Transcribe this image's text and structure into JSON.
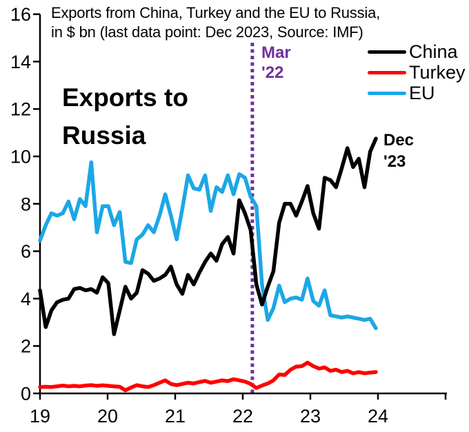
{
  "title": {
    "line1": "Exports from China, Turkey and the EU to Russia,",
    "line2": "in $ bn (last data point: Dec 2023, Source: IMF)"
  },
  "annotations": {
    "big_label_line1": "Exports to",
    "big_label_line2": "Russia",
    "event_label_line1": "Mar",
    "event_label_line2": "'22",
    "last_point_label_line1": "Dec",
    "last_point_label_line2": "'23"
  },
  "colors": {
    "china": "#000000",
    "turkey": "#FF0000",
    "eu": "#1BA7E6",
    "event_line": "#7030A0",
    "axis": "#000000"
  },
  "chart_data": {
    "type": "line",
    "title": "Exports from China, Turkey and the EU to Russia, in $ bn (last data point: Dec 2023, Source: IMF)",
    "xlabel": "",
    "ylabel": "$ bn",
    "ylim": [
      0,
      16
    ],
    "y_ticks": [
      0,
      2,
      4,
      6,
      8,
      10,
      12,
      14,
      16
    ],
    "x_tick_labels": [
      "19",
      "20",
      "21",
      "22",
      "23",
      "24"
    ],
    "frequency": "monthly",
    "x_start": "2019-01",
    "x_end": "2023-12",
    "grid": false,
    "legend_position": "top-right",
    "event_line": {
      "label": "Mar '22",
      "month_index": 37.3,
      "style": "dotted"
    },
    "legend": [
      {
        "name": "China",
        "color": "#000000"
      },
      {
        "name": "Turkey",
        "color": "#FF0000"
      },
      {
        "name": "EU",
        "color": "#1BA7E6"
      }
    ],
    "series": [
      {
        "name": "China",
        "color": "#000000",
        "values": [
          4.35,
          2.8,
          3.5,
          3.85,
          3.95,
          4.0,
          4.4,
          4.45,
          4.35,
          4.4,
          4.25,
          4.9,
          4.65,
          2.5,
          3.5,
          4.5,
          4.0,
          4.25,
          5.2,
          5.05,
          4.75,
          4.85,
          5.0,
          5.35,
          4.6,
          4.2,
          5.0,
          4.6,
          5.1,
          5.55,
          5.9,
          5.6,
          6.3,
          6.6,
          5.9,
          8.15,
          7.6,
          6.9,
          4.6,
          3.75,
          4.5,
          5.15,
          7.2,
          8.0,
          8.0,
          7.5,
          8.1,
          8.75,
          7.6,
          6.95,
          9.1,
          9.0,
          8.7,
          9.5,
          10.35,
          9.55,
          9.9,
          8.7,
          10.2,
          10.75
        ]
      },
      {
        "name": "Turkey",
        "color": "#FF0000",
        "values": [
          0.27,
          0.28,
          0.27,
          0.3,
          0.33,
          0.3,
          0.32,
          0.3,
          0.33,
          0.35,
          0.32,
          0.34,
          0.32,
          0.3,
          0.28,
          0.13,
          0.25,
          0.35,
          0.3,
          0.27,
          0.35,
          0.45,
          0.55,
          0.4,
          0.35,
          0.4,
          0.45,
          0.42,
          0.48,
          0.53,
          0.45,
          0.5,
          0.55,
          0.52,
          0.6,
          0.55,
          0.5,
          0.4,
          0.23,
          0.33,
          0.42,
          0.55,
          0.8,
          0.78,
          1.0,
          1.13,
          1.15,
          1.3,
          1.15,
          1.05,
          1.1,
          0.95,
          1.0,
          0.9,
          0.95,
          0.85,
          0.9,
          0.85,
          0.88,
          0.9
        ]
      },
      {
        "name": "EU",
        "color": "#1BA7E6",
        "values": [
          6.45,
          7.1,
          7.6,
          7.5,
          7.6,
          8.1,
          7.35,
          8.2,
          7.9,
          9.75,
          6.8,
          7.9,
          7.9,
          7.1,
          7.65,
          5.55,
          5.5,
          6.5,
          6.7,
          7.1,
          6.8,
          7.5,
          8.4,
          7.5,
          6.5,
          7.8,
          9.2,
          8.65,
          8.6,
          9.2,
          7.7,
          8.7,
          8.5,
          9.2,
          8.4,
          9.25,
          9.1,
          8.3,
          7.9,
          4.6,
          3.1,
          3.6,
          4.55,
          3.85,
          4.0,
          4.05,
          3.95,
          4.85,
          3.9,
          3.7,
          4.35,
          3.3,
          3.25,
          3.2,
          3.25,
          3.2,
          3.15,
          3.1,
          3.15,
          2.75
        ]
      }
    ]
  }
}
